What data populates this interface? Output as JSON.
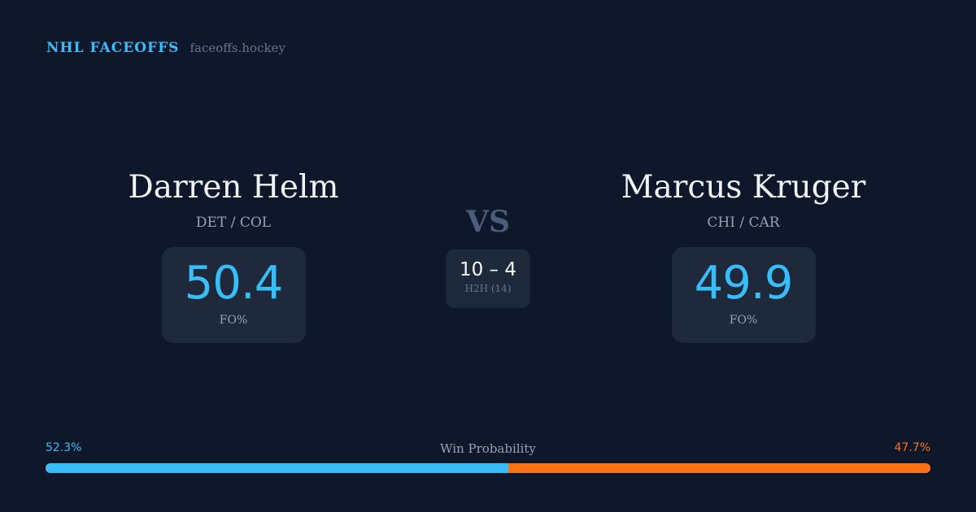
{
  "brand": {
    "name": "NHL FACEOFFS",
    "site": "faceoffs.hockey"
  },
  "player1": {
    "name": "Darren Helm",
    "teams": "DET / COL",
    "fo_pct": "50.4",
    "fo_label": "FO%"
  },
  "player2": {
    "name": "Marcus Kruger",
    "teams": "CHI / CAR",
    "fo_pct": "49.9",
    "fo_label": "FO%"
  },
  "versus": "VS",
  "h2h": {
    "score": "10 – 4",
    "label": "H2H (14)"
  },
  "win_probability": {
    "title": "Win Probability",
    "left": "52.3%",
    "right": "47.7%",
    "left_value": 52.3,
    "right_value": 47.7
  },
  "colors": {
    "background": "#0f172a",
    "accent_blue": "#38bdf8",
    "accent_orange": "#f97316",
    "card": "#1e293b"
  }
}
